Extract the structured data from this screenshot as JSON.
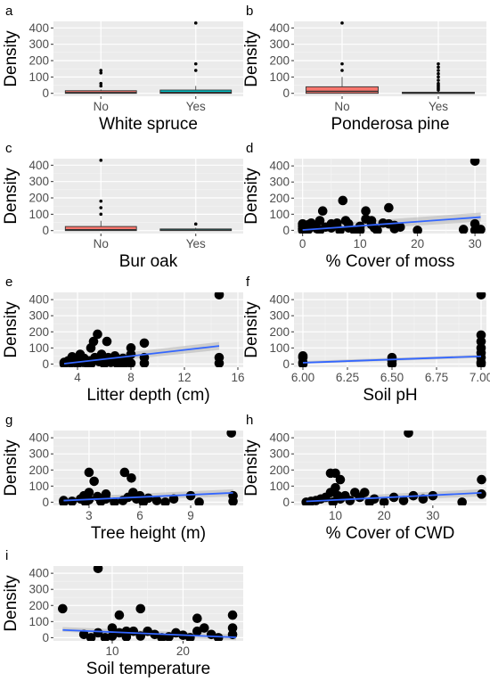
{
  "figure": {
    "background": "#ffffff",
    "plot_background": "#ebebeb",
    "grid_color": "#ffffff",
    "colors": {
      "no_fill": "#f8766d",
      "yes_fill": "#00bfc4",
      "points": "#000000",
      "fit_line": "#3366ff",
      "ci_band": "#b3b3b3",
      "box_outline": "#333333"
    }
  },
  "chart_data": [
    {
      "id": "a",
      "letter": "a",
      "type": "box",
      "categories": [
        "No",
        "Yes"
      ],
      "xlabel": "White spruce",
      "ylabel": "Density",
      "ylim": [
        -18,
        440
      ],
      "yticks": [
        0,
        100,
        200,
        300,
        400
      ],
      "boxes": [
        {
          "category": "No",
          "q1": 0,
          "median": 4,
          "q3": 16,
          "whisker_low": 0,
          "whisker_high": 24,
          "outliers": [
            45,
            60,
            125,
            140
          ]
        },
        {
          "category": "Yes",
          "q1": 0,
          "median": 5,
          "q3": 20,
          "whisker_low": 0,
          "whisker_high": 45,
          "outliers": [
            140,
            180,
            430
          ]
        }
      ]
    },
    {
      "id": "b",
      "letter": "b",
      "type": "box",
      "categories": [
        "No",
        "Yes"
      ],
      "xlabel": "Ponderosa pine",
      "ylabel": "Density",
      "ylim": [
        -18,
        440
      ],
      "yticks": [
        0,
        100,
        200,
        300,
        400
      ],
      "boxes": [
        {
          "category": "No",
          "q1": 0,
          "median": 12,
          "q3": 40,
          "whisker_low": 0,
          "whisker_high": 100,
          "outliers": [
            140,
            180,
            430
          ]
        },
        {
          "category": "Yes",
          "q1": 0,
          "median": 2,
          "q3": 7,
          "whisker_low": 0,
          "whisker_high": 15,
          "outliers": [
            20,
            30,
            40,
            50,
            60,
            80,
            100,
            120,
            140,
            160,
            180
          ]
        }
      ]
    },
    {
      "id": "c",
      "letter": "c",
      "type": "box",
      "categories": [
        "No",
        "Yes"
      ],
      "xlabel": "Bur oak",
      "ylabel": "Density",
      "ylim": [
        -18,
        440
      ],
      "yticks": [
        0,
        100,
        200,
        300,
        400
      ],
      "boxes": [
        {
          "category": "No",
          "q1": 0,
          "median": 5,
          "q3": 25,
          "whisker_low": 0,
          "whisker_high": 60,
          "outliers": [
            100,
            140,
            180,
            430
          ]
        },
        {
          "category": "Yes",
          "q1": 0,
          "median": 3,
          "q3": 10,
          "whisker_low": 0,
          "whisker_high": 18,
          "outliers": [
            40
          ]
        }
      ]
    },
    {
      "id": "d",
      "letter": "d",
      "type": "scatter",
      "xlabel": "% Cover of moss",
      "ylabel": "Density",
      "xlim": [
        -1.5,
        32
      ],
      "ylim": [
        -20,
        445
      ],
      "xticks": [
        0,
        10,
        20,
        30
      ],
      "xtick_labels": [
        "0",
        "10",
        "20",
        "30"
      ],
      "yticks": [
        0,
        100,
        200,
        300,
        400
      ],
      "points": [
        [
          0,
          0
        ],
        [
          0,
          10
        ],
        [
          0,
          25
        ],
        [
          0,
          40
        ],
        [
          0.5,
          15
        ],
        [
          1,
          5
        ],
        [
          1,
          35
        ],
        [
          1.5,
          45
        ],
        [
          2,
          30
        ],
        [
          2.5,
          10
        ],
        [
          3,
          0
        ],
        [
          3,
          60
        ],
        [
          3.5,
          120
        ],
        [
          4,
          20
        ],
        [
          5,
          40
        ],
        [
          5,
          15
        ],
        [
          6,
          45
        ],
        [
          6.5,
          0
        ],
        [
          7,
          185
        ],
        [
          7.5,
          60
        ],
        [
          8,
          15
        ],
        [
          8,
          40
        ],
        [
          9,
          0
        ],
        [
          10,
          0
        ],
        [
          10,
          25
        ],
        [
          11,
          120
        ],
        [
          11,
          70
        ],
        [
          12,
          35
        ],
        [
          12,
          60
        ],
        [
          12.5,
          15
        ],
        [
          13,
          0
        ],
        [
          14,
          45
        ],
        [
          15,
          140
        ],
        [
          15,
          40
        ],
        [
          16,
          10
        ],
        [
          16,
          30
        ],
        [
          17,
          20
        ],
        [
          20,
          0
        ],
        [
          28,
          5
        ],
        [
          30,
          0
        ],
        [
          30,
          430
        ],
        [
          30,
          40
        ],
        [
          31,
          5
        ]
      ],
      "fit": {
        "x0": 0,
        "y0": 2,
        "x1": 31,
        "y1": 82,
        "ci_half_width": 28
      }
    },
    {
      "id": "e",
      "letter": "e",
      "type": "scatter",
      "xlabel": "Litter depth (cm)",
      "ylabel": "Density",
      "xlim": [
        2.2,
        16.4
      ],
      "ylim": [
        -20,
        445
      ],
      "xticks": [
        4,
        8,
        12,
        16
      ],
      "xtick_labels": [
        "4",
        "8",
        "12",
        "16"
      ],
      "yticks": [
        0,
        100,
        200,
        300,
        400
      ],
      "points": [
        [
          3,
          0
        ],
        [
          3,
          10
        ],
        [
          3.3,
          20
        ],
        [
          3.5,
          5
        ],
        [
          3.6,
          45
        ],
        [
          3.8,
          15
        ],
        [
          4,
          30
        ],
        [
          4,
          0
        ],
        [
          4.2,
          60
        ],
        [
          4.4,
          10
        ],
        [
          4.5,
          35
        ],
        [
          4.7,
          5
        ],
        [
          4.9,
          20
        ],
        [
          5,
          100
        ],
        [
          5,
          0
        ],
        [
          5.2,
          140
        ],
        [
          5.3,
          40
        ],
        [
          5.5,
          185
        ],
        [
          5.6,
          15
        ],
        [
          5.8,
          60
        ],
        [
          6,
          25
        ],
        [
          6,
          0
        ],
        [
          6.2,
          140
        ],
        [
          6.3,
          40
        ],
        [
          6.5,
          10
        ],
        [
          6.6,
          30
        ],
        [
          6.8,
          50
        ],
        [
          7,
          0
        ],
        [
          7.2,
          20
        ],
        [
          7.4,
          35
        ],
        [
          7.5,
          0
        ],
        [
          7.7,
          15
        ],
        [
          8,
          100
        ],
        [
          8,
          60
        ],
        [
          8,
          5
        ],
        [
          9,
          130
        ],
        [
          9,
          40
        ],
        [
          9,
          5
        ],
        [
          14.6,
          430
        ],
        [
          14.6,
          40
        ],
        [
          14.6,
          5
        ]
      ],
      "fit": {
        "x0": 3,
        "y0": 2,
        "x1": 14.6,
        "y1": 112,
        "ci_half_width": 25
      }
    },
    {
      "id": "f",
      "letter": "f",
      "type": "scatter",
      "xlabel": "Soil pH",
      "ylabel": "Density",
      "xlim": [
        5.95,
        7.03
      ],
      "ylim": [
        -20,
        445
      ],
      "xticks": [
        6.0,
        6.25,
        6.5,
        6.75,
        7.0
      ],
      "xtick_labels": [
        "6.00",
        "6.25",
        "6.50",
        "6.75",
        "7.00"
      ],
      "yticks": [
        0,
        100,
        200,
        300,
        400
      ],
      "points": [
        [
          6,
          0
        ],
        [
          6,
          10
        ],
        [
          6,
          50
        ],
        [
          6,
          40
        ],
        [
          6.5,
          0
        ],
        [
          6.5,
          20
        ],
        [
          6.5,
          40
        ],
        [
          7,
          0
        ],
        [
          7,
          10
        ],
        [
          7,
          40
        ],
        [
          7,
          70
        ],
        [
          7,
          100
        ],
        [
          7,
          140
        ],
        [
          7,
          180
        ],
        [
          7,
          430
        ]
      ],
      "fit": {
        "x0": 6.0,
        "y0": 8,
        "x1": 7.0,
        "y1": 48,
        "ci_half_width": 10
      }
    },
    {
      "id": "g",
      "letter": "g",
      "type": "scatter",
      "xlabel": "Tree height (m)",
      "ylabel": "Density",
      "xlim": [
        0.9,
        12.1
      ],
      "ylim": [
        -20,
        445
      ],
      "xticks": [
        3,
        6,
        9
      ],
      "xtick_labels": [
        "3",
        "6",
        "9"
      ],
      "yticks": [
        0,
        100,
        200,
        300,
        400
      ],
      "points": [
        [
          1.5,
          0
        ],
        [
          1.5,
          10
        ],
        [
          2,
          5
        ],
        [
          2.5,
          20
        ],
        [
          2.7,
          40
        ],
        [
          2.8,
          0
        ],
        [
          3,
          60
        ],
        [
          3,
          185
        ],
        [
          3,
          15
        ],
        [
          3.3,
          130
        ],
        [
          3.5,
          35
        ],
        [
          3.7,
          5
        ],
        [
          4,
          50
        ],
        [
          4,
          20
        ],
        [
          4.5,
          0
        ],
        [
          5,
          10
        ],
        [
          5.1,
          185
        ],
        [
          5.3,
          30
        ],
        [
          5.5,
          150
        ],
        [
          5.6,
          60
        ],
        [
          5.8,
          20
        ],
        [
          6,
          40
        ],
        [
          6.2,
          0
        ],
        [
          6.5,
          25
        ],
        [
          7,
          10
        ],
        [
          7.5,
          0
        ],
        [
          8,
          20
        ],
        [
          9,
          40
        ],
        [
          9.5,
          0
        ],
        [
          11.4,
          430
        ],
        [
          11.5,
          40
        ],
        [
          11.5,
          5
        ]
      ],
      "fit": {
        "x0": 1.5,
        "y0": 10,
        "x1": 11.5,
        "y1": 58,
        "ci_half_width": 22
      }
    },
    {
      "id": "h",
      "letter": "h",
      "type": "scatter",
      "xlabel": "% Cover of CWD",
      "ylabel": "Density",
      "xlim": [
        1.5,
        41
      ],
      "ylim": [
        -20,
        445
      ],
      "xticks": [
        10,
        20,
        30
      ],
      "xtick_labels": [
        "10",
        "20",
        "30"
      ],
      "yticks": [
        0,
        100,
        200,
        300,
        400
      ],
      "points": [
        [
          4,
          0
        ],
        [
          5,
          5
        ],
        [
          6,
          10
        ],
        [
          7,
          20
        ],
        [
          8,
          30
        ],
        [
          9,
          180
        ],
        [
          9,
          60
        ],
        [
          9.5,
          0
        ],
        [
          10,
          180
        ],
        [
          10,
          90
        ],
        [
          10.5,
          40
        ],
        [
          11,
          20
        ],
        [
          11,
          140
        ],
        [
          12,
          40
        ],
        [
          13,
          10
        ],
        [
          14,
          60
        ],
        [
          15,
          30
        ],
        [
          16,
          60
        ],
        [
          17,
          0
        ],
        [
          18,
          20
        ],
        [
          20,
          0
        ],
        [
          22,
          30
        ],
        [
          24,
          10
        ],
        [
          25,
          430
        ],
        [
          26,
          40
        ],
        [
          28,
          20
        ],
        [
          30,
          40
        ],
        [
          36,
          0
        ],
        [
          40,
          140
        ],
        [
          40,
          50
        ]
      ],
      "fit": {
        "x0": 4,
        "y0": 5,
        "x1": 40,
        "y1": 58,
        "ci_half_width": 22
      }
    },
    {
      "id": "i",
      "letter": "i",
      "type": "scatter",
      "xlabel": "Soil temperature",
      "ylabel": "Density",
      "xlim": [
        1.7,
        28.5
      ],
      "ylim": [
        -20,
        445
      ],
      "xticks": [
        10,
        20
      ],
      "xtick_labels": [
        "10",
        "20"
      ],
      "yticks": [
        0,
        100,
        200,
        300,
        400
      ],
      "points": [
        [
          3,
          180
        ],
        [
          6,
          20
        ],
        [
          7,
          0
        ],
        [
          8,
          430
        ],
        [
          8,
          30
        ],
        [
          9,
          0
        ],
        [
          10,
          60
        ],
        [
          10,
          10
        ],
        [
          11,
          140
        ],
        [
          11,
          30
        ],
        [
          12,
          40
        ],
        [
          12,
          5
        ],
        [
          13,
          40
        ],
        [
          14,
          180
        ],
        [
          14,
          10
        ],
        [
          15,
          40
        ],
        [
          16,
          20
        ],
        [
          17,
          0
        ],
        [
          18,
          5
        ],
        [
          19,
          30
        ],
        [
          20,
          15
        ],
        [
          21,
          0
        ],
        [
          22,
          40
        ],
        [
          22,
          120
        ],
        [
          23,
          60
        ],
        [
          24,
          20
        ],
        [
          25,
          0
        ],
        [
          27,
          140
        ],
        [
          27,
          60
        ],
        [
          27,
          20
        ]
      ],
      "fit": {
        "x0": 3,
        "y0": 48,
        "x1": 27.5,
        "y1": 2,
        "ci_half_width": 18
      }
    }
  ]
}
